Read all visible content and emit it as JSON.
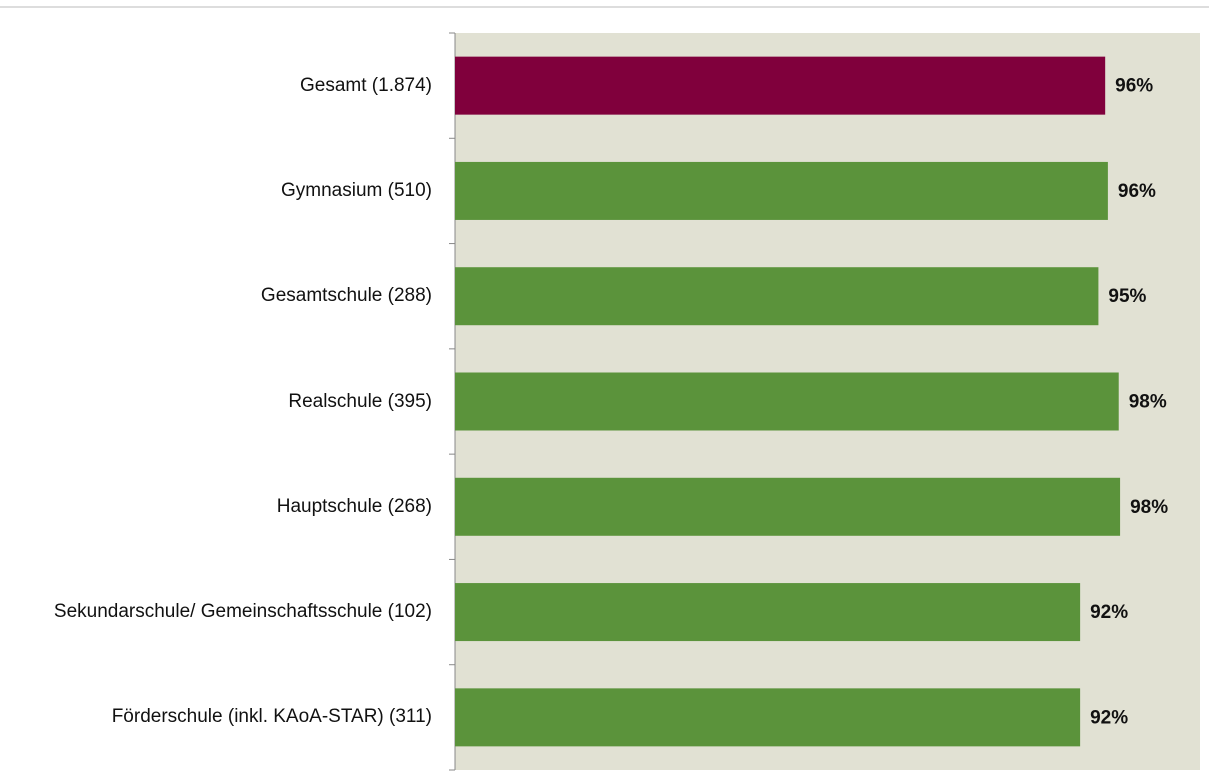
{
  "chart_data": {
    "type": "bar",
    "orientation": "horizontal",
    "categories": [
      "Gesamt (1.874)",
      "Gymnasium (510)",
      "Gesamtschule (288)",
      "Realschule (395)",
      "Hauptschule (268)",
      "Sekundarschule/ Gemeinschaftsschule (102)",
      "Förderschule (inkl. KAoA-STAR) (311)"
    ],
    "values": [
      96,
      96.4,
      95,
      98,
      98.2,
      92.3,
      92.3
    ],
    "value_labels": [
      "96%",
      "96%",
      "95%",
      "98%",
      "98%",
      "92%",
      "92%"
    ],
    "colors": [
      "#80003c",
      "#5b933b",
      "#5b933b",
      "#5b933b",
      "#5b933b",
      "#5b933b",
      "#5b933b"
    ],
    "xlim": [
      0,
      110
    ],
    "plot_background": "#e1e1d3"
  }
}
